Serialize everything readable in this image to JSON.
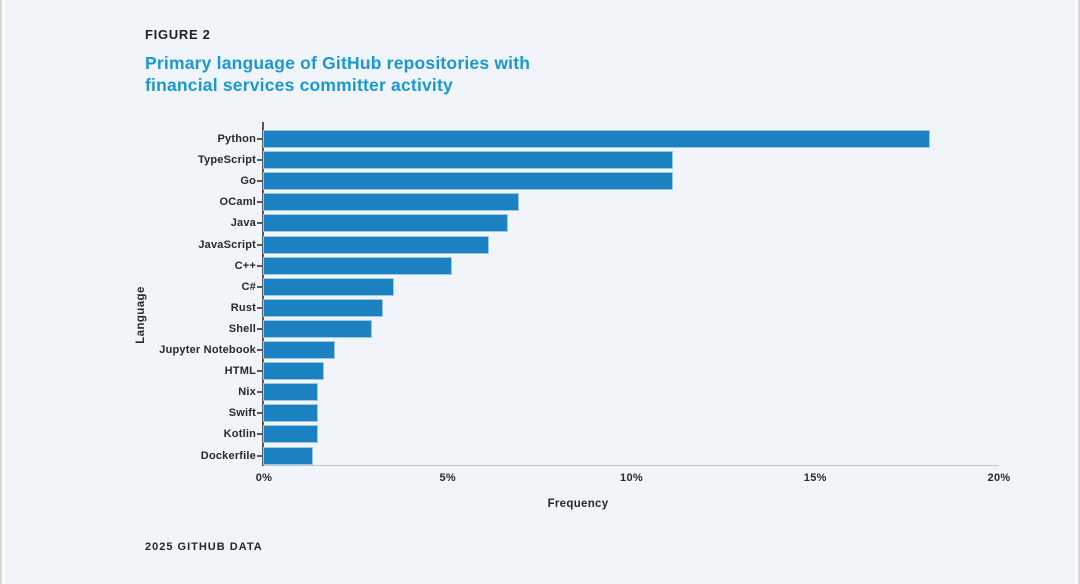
{
  "figure": {
    "label": "FIGURE 2",
    "title_line1": "Primary language of GitHub repositories with",
    "title_line2": "financial services committer activity",
    "source": "2025 GITHUB DATA"
  },
  "colors": {
    "background": "#f1f4f8",
    "bar": "#1c81c1",
    "bar_edge": "#9cc8e6",
    "title_accent": "#1899d5",
    "text_dark": "#26292d",
    "axis_line": "#c3c7cb",
    "spine": "#54585c"
  },
  "chart_data": {
    "type": "bar",
    "orientation": "horizontal",
    "title": "Primary language of GitHub repositories with financial services committer activity",
    "categories": [
      "Python",
      "TypeScript",
      "Go",
      "OCaml",
      "Java",
      "JavaScript",
      "C++",
      "C#",
      "Rust",
      "Shell",
      "Jupyter Notebook",
      "HTML",
      "Nix",
      "Swift",
      "Kotlin",
      "Dockerfile"
    ],
    "values": [
      18.1,
      11.1,
      11.1,
      6.9,
      6.6,
      6.1,
      5.1,
      3.5,
      3.2,
      2.9,
      1.9,
      1.6,
      1.45,
      1.45,
      1.45,
      1.3
    ],
    "unit": "%",
    "xlabel": "Frequency",
    "ylabel": "Language",
    "xlim": [
      0,
      20
    ],
    "x_ticks": [
      "0%",
      "5%",
      "10%",
      "15%",
      "20%"
    ],
    "grid": false,
    "legend": null
  }
}
